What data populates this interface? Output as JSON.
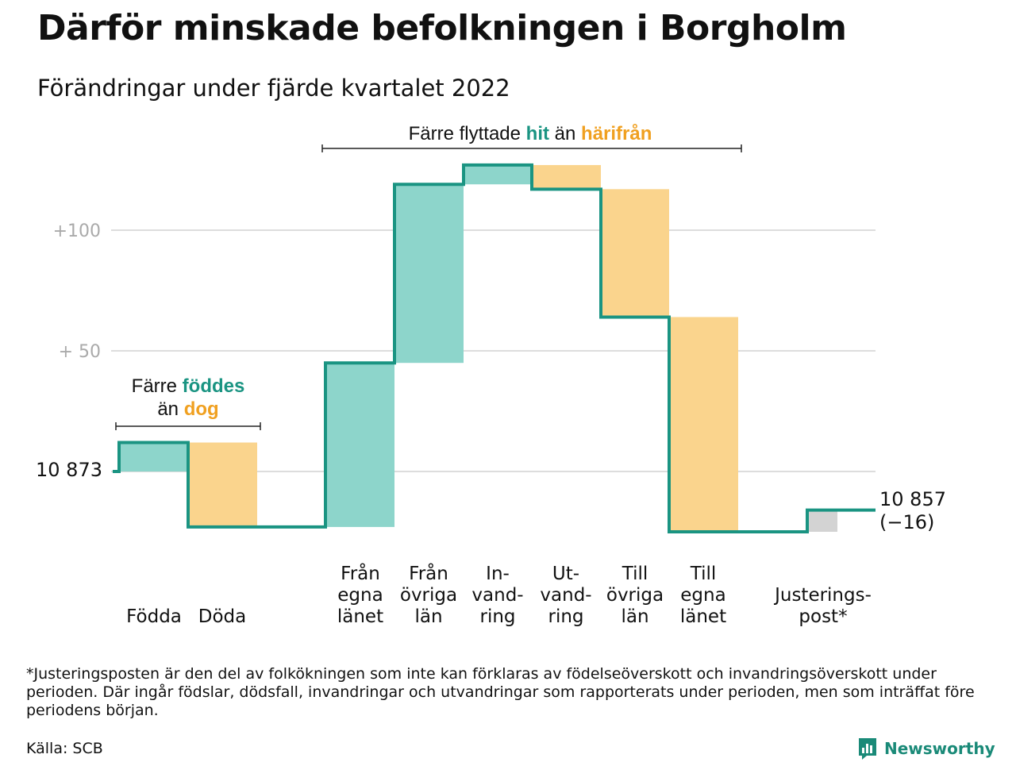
{
  "header": {
    "title": "Därför minskade befolkningen i Borgholm",
    "subtitle": "Förändringar under fjärde kvartalet 2022"
  },
  "colors": {
    "increase_fill": "#8dd5cb",
    "decrease_fill": "#fad48d",
    "adjustment_fill": "#d3d3d3",
    "step_line": "#1a9482",
    "accent_teal": "#1a9482",
    "accent_orange": "#f0a020",
    "gridline": "#dddddd",
    "tick_label": "#aaaaaa"
  },
  "chart_data": {
    "type": "waterfall",
    "start": {
      "value": 10873,
      "label": "10 873"
    },
    "end": {
      "value": 10857,
      "label": "10 857",
      "change_label": "(−16)"
    },
    "y_ticks": [
      {
        "value": 100,
        "label": "+100"
      },
      {
        "value": 50,
        "label": "+ 50"
      }
    ],
    "ylim": [
      -30,
      130
    ],
    "grid": true,
    "steps": [
      {
        "category": [
          "Födda"
        ],
        "delta": 12,
        "kind": "increase"
      },
      {
        "category": [
          "Döda"
        ],
        "delta": -35,
        "kind": "decrease"
      },
      {
        "category": [
          "Från",
          "egna",
          "länet"
        ],
        "delta": 68,
        "kind": "increase"
      },
      {
        "category": [
          "Från",
          "övriga",
          "län"
        ],
        "delta": 74,
        "kind": "increase"
      },
      {
        "category": [
          "In-",
          "vand-",
          "ring"
        ],
        "delta": 8,
        "kind": "increase"
      },
      {
        "category": [
          "Ut-",
          "vand-",
          "ring"
        ],
        "delta": -10,
        "kind": "decrease"
      },
      {
        "category": [
          "Till",
          "övriga",
          "län"
        ],
        "delta": -53,
        "kind": "decrease"
      },
      {
        "category": [
          "Till",
          "egna",
          "länet"
        ],
        "delta": -89,
        "kind": "decrease"
      },
      {
        "category": [
          "Justerings-",
          "post*"
        ],
        "delta": 9,
        "kind": "adjustment"
      }
    ],
    "annotations": {
      "births": {
        "lines": [
          [
            {
              "text": "Färre ",
              "tone": "plain"
            },
            {
              "text": "föddes",
              "tone": "teal"
            }
          ],
          [
            {
              "text": "än ",
              "tone": "plain"
            },
            {
              "text": "dog",
              "tone": "orange"
            }
          ]
        ]
      },
      "migration": {
        "lines": [
          [
            {
              "text": "Färre flyttade ",
              "tone": "plain"
            },
            {
              "text": "hit",
              "tone": "teal"
            },
            {
              "text": " än ",
              "tone": "plain"
            },
            {
              "text": "härifrån",
              "tone": "orange"
            }
          ]
        ]
      }
    }
  },
  "footnote": {
    "text": "*Justeringsposten är den del av folkökningen som inte kan förklaras av födelseöverskott och invandringsöverskott under perioden. Där ingår födslar, dödsfall, invandringar och utvandringar som rapporterats under perioden, men som inträffat före periodens början.",
    "source": "Källa: SCB"
  },
  "brand": {
    "name": "Newsworthy",
    "icon": "newsworthy-logo-icon"
  }
}
